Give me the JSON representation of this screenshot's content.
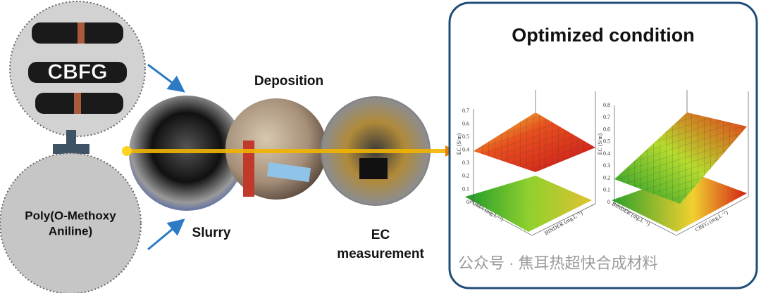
{
  "materials": {
    "cbfg": "CBFG",
    "poma": [
      "Poly(O-Methoxy",
      "Aniline)"
    ]
  },
  "steps": [
    {
      "label": [
        "Slurry"
      ]
    },
    {
      "label": [
        "Deposition"
      ]
    },
    {
      "label": [
        "EC",
        "measurement"
      ]
    }
  ],
  "result": {
    "title": "Optimized condition",
    "plots": [
      {
        "z_label": "EC (S/m)",
        "z_ticks": [
          "0",
          "0.1",
          "0.2",
          "0.3",
          "0.4",
          "0.5",
          "0.6",
          "0.7"
        ],
        "x_label": "POMA (mg.L⁻¹)",
        "y_label": "BINDER (mg.L⁻¹)"
      },
      {
        "z_label": "EC (S/m)",
        "z_ticks": [
          "0",
          "0.1",
          "0.2",
          "0.3",
          "0.4",
          "0.5",
          "0.6",
          "0.7",
          "0.8"
        ],
        "x_label": "BINDER (mg.L⁻¹)",
        "y_label": "CBFG (mg.L⁻¹)"
      }
    ]
  },
  "watermark": "公众号 · 焦耳热超快合成材料"
}
